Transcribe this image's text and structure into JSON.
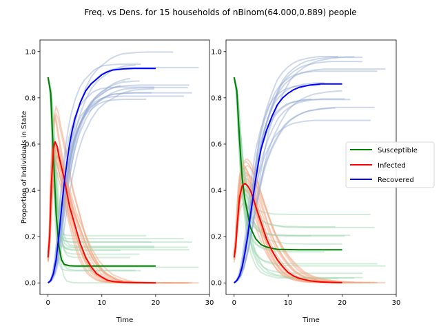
{
  "figure": {
    "title": "Freq. vs Dens. for 15 households of nBinom(64.000,0.889) people"
  },
  "legend": {
    "placement": "right",
    "entries": [
      {
        "label": "Susceptible",
        "color": "#008000"
      },
      {
        "label": "Infected",
        "color": "#ff0000"
      },
      {
        "label": "Recovered",
        "color": "#0000ff"
      }
    ]
  },
  "colors": {
    "susceptible": "#008000",
    "infected": "#ff0000",
    "recovered": "#0000ff",
    "susceptible_faint": "#98d4ad",
    "infected_faint": "#f4a582",
    "recovered_faint": "#92a8d1"
  },
  "chart_data": [
    {
      "type": "line",
      "title": "",
      "xlabel": "Time",
      "ylabel": "Proportion of Individuals in State",
      "xlim": [
        -1.5,
        30
      ],
      "ylim": [
        -0.05,
        1.05
      ],
      "xticks": [
        "0",
        "10",
        "20",
        "30"
      ],
      "yticks": [
        "0.0",
        "0.2",
        "0.4",
        "0.6",
        "0.8",
        "1.0"
      ],
      "series": [
        {
          "name": "Susceptible",
          "x": [
            0,
            0.5,
            1,
            1.5,
            2,
            2.5,
            3,
            4,
            5,
            8,
            12,
            20
          ],
          "y": [
            0.889,
            0.82,
            0.55,
            0.3,
            0.16,
            0.1,
            0.08,
            0.074,
            0.073,
            0.073,
            0.073,
            0.073
          ]
        },
        {
          "name": "Infected",
          "x": [
            0,
            0.3,
            0.6,
            1,
            1.3,
            1.7,
            2,
            2.5,
            3,
            3.5,
            4,
            5,
            6,
            7,
            8,
            9,
            10,
            11,
            12,
            14,
            16,
            20
          ],
          "y": [
            0.11,
            0.2,
            0.42,
            0.58,
            0.61,
            0.59,
            0.55,
            0.5,
            0.45,
            0.39,
            0.33,
            0.25,
            0.17,
            0.11,
            0.07,
            0.04,
            0.025,
            0.012,
            0.006,
            0.002,
            0.001,
            0.0
          ]
        },
        {
          "name": "Recovered",
          "x": [
            0,
            0.5,
            1,
            1.5,
            2,
            2.5,
            3,
            3.5,
            4,
            4.5,
            5,
            6,
            7,
            8,
            9,
            10,
            11,
            12,
            14,
            16,
            18,
            20
          ],
          "y": [
            0.0,
            0.01,
            0.04,
            0.1,
            0.2,
            0.32,
            0.43,
            0.52,
            0.6,
            0.66,
            0.71,
            0.78,
            0.83,
            0.86,
            0.88,
            0.9,
            0.912,
            0.92,
            0.925,
            0.927,
            0.927,
            0.927
          ]
        }
      ]
    },
    {
      "type": "line",
      "title": "",
      "xlabel": "Time",
      "ylabel": "",
      "xlim": [
        -1.5,
        30
      ],
      "ylim": [
        -0.05,
        1.05
      ],
      "xticks": [
        "0",
        "10",
        "20",
        "30"
      ],
      "yticks": [
        "0.0",
        "0.2",
        "0.4",
        "0.6",
        "0.8",
        "1.0"
      ],
      "series": [
        {
          "name": "Susceptible",
          "x": [
            0,
            0.5,
            1,
            1.5,
            2,
            2.5,
            3,
            4,
            5,
            6,
            8,
            12,
            20
          ],
          "y": [
            0.889,
            0.83,
            0.62,
            0.45,
            0.36,
            0.3,
            0.24,
            0.19,
            0.165,
            0.155,
            0.145,
            0.143,
            0.143
          ]
        },
        {
          "name": "Infected",
          "x": [
            0,
            0.3,
            0.6,
            1,
            1.5,
            2,
            2.5,
            3,
            3.5,
            4,
            5,
            6,
            7,
            8,
            9,
            10,
            11,
            12,
            14,
            16,
            18,
            20
          ],
          "y": [
            0.11,
            0.16,
            0.26,
            0.37,
            0.42,
            0.43,
            0.42,
            0.4,
            0.37,
            0.33,
            0.26,
            0.19,
            0.14,
            0.1,
            0.07,
            0.045,
            0.03,
            0.02,
            0.009,
            0.004,
            0.002,
            0.001
          ]
        },
        {
          "name": "Recovered",
          "x": [
            0,
            0.5,
            1,
            1.5,
            2,
            2.5,
            3,
            3.5,
            4,
            4.5,
            5,
            6,
            7,
            8,
            9,
            10,
            11,
            12,
            14,
            16,
            18,
            20
          ],
          "y": [
            0.0,
            0.01,
            0.03,
            0.07,
            0.13,
            0.2,
            0.29,
            0.37,
            0.45,
            0.52,
            0.58,
            0.66,
            0.72,
            0.77,
            0.8,
            0.82,
            0.835,
            0.845,
            0.855,
            0.86,
            0.86,
            0.86
          ]
        }
      ]
    }
  ]
}
